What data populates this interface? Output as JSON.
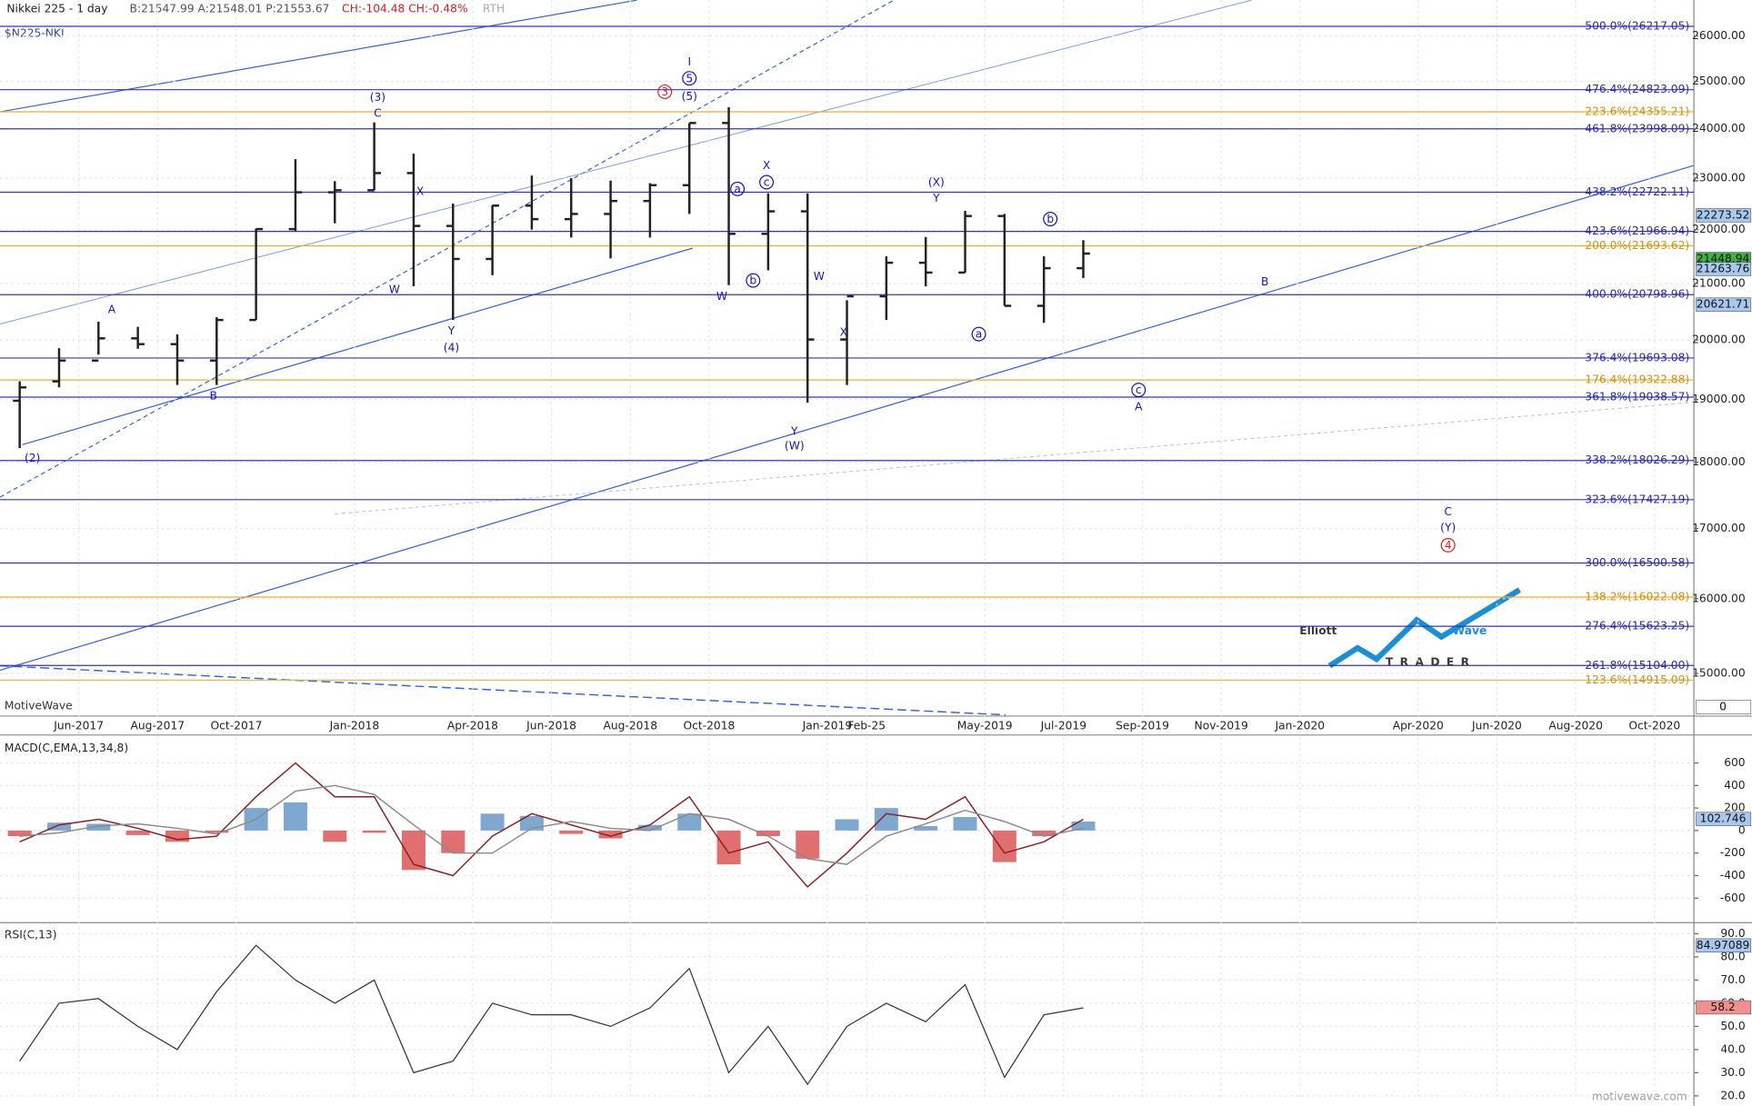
{
  "header": {
    "title": "Nikkei 225 - 1 day",
    "quote": "B:21547.99 A:21548.01 P:21553.67",
    "change": "CH:-104.48 CH:-0.48%",
    "session": "RTH",
    "symbol": "$N225-NKI",
    "brand": "MotiveWave",
    "site": "motivewave.com"
  },
  "logo": {
    "word1": "Elliott",
    "word2": "Wave",
    "word3": "TRADER"
  },
  "chart_data": [
    {
      "type": "ohlc",
      "log_scale": true,
      "grid": true,
      "x": [
        "2017-04",
        "2017-05",
        "2017-06",
        "2017-07",
        "2017-08",
        "2017-09",
        "2017-10",
        "2017-11",
        "2017-12",
        "2018-01",
        "2018-02",
        "2018-03",
        "2018-04",
        "2018-05",
        "2018-06",
        "2018-07",
        "2018-08",
        "2018-09",
        "2018-10",
        "2018-11",
        "2018-12",
        "2019-01",
        "2019-02",
        "2019-03",
        "2019-04",
        "2019-05",
        "2019-06",
        "2019-07"
      ],
      "open": [
        18980,
        19300,
        19650,
        20030,
        19930,
        19650,
        20350,
        22010,
        22720,
        22760,
        23100,
        22070,
        21450,
        22460,
        22200,
        22300,
        22550,
        22860,
        24120,
        21920,
        22350,
        20010,
        20770,
        21380,
        21200,
        22260,
        20600,
        21280
      ],
      "high": [
        19300,
        19860,
        20320,
        20230,
        20100,
        20400,
        22020,
        23380,
        22940,
        24130,
        23490,
        22500,
        22470,
        23050,
        23000,
        22950,
        22900,
        24120,
        24450,
        22700,
        22700,
        20700,
        21500,
        21860,
        22360,
        22300,
        21500,
        21800
      ],
      "low": [
        18220,
        19200,
        19750,
        19850,
        19240,
        19240,
        20350,
        21970,
        22120,
        22760,
        20950,
        20350,
        21150,
        22000,
        21850,
        21460,
        21850,
        22300,
        20970,
        21240,
        18950,
        19240,
        20350,
        20950,
        21200,
        20600,
        20300,
        21100
      ],
      "close": [
        19200,
        19650,
        20030,
        19930,
        19650,
        20350,
        22010,
        22720,
        22760,
        23100,
        22070,
        21450,
        22460,
        22200,
        22300,
        22550,
        22860,
        24120,
        21920,
        22350,
        20010,
        20770,
        21380,
        21200,
        22260,
        20600,
        21280,
        21550
      ],
      "color": "#222222",
      "xlim": [
        "2017-04",
        "2020-11"
      ],
      "xticks": [
        {
          "value": "2017-06",
          "label": "Jun-2017"
        },
        {
          "value": "2017-08",
          "label": "Aug-2017"
        },
        {
          "value": "2017-10",
          "label": "Oct-2017"
        },
        {
          "value": "2018-01",
          "label": "Jan-2018"
        },
        {
          "value": "2018-04",
          "label": "Apr-2018"
        },
        {
          "value": "2018-06",
          "label": "Jun-2018"
        },
        {
          "value": "2018-08",
          "label": "Aug-2018"
        },
        {
          "value": "2018-10",
          "label": "Oct-2018"
        },
        {
          "value": "2019-01",
          "label": "Jan-2019"
        },
        {
          "value": "2019-02",
          "label": "Feb-25"
        },
        {
          "value": "2019-05",
          "label": "May-2019"
        },
        {
          "value": "2019-07",
          "label": "Jul-2019"
        },
        {
          "value": "2019-09",
          "label": "Sep-2019"
        },
        {
          "value": "2019-11",
          "label": "Nov-2019"
        },
        {
          "value": "2020-01",
          "label": "Jan-2020"
        },
        {
          "value": "2020-04",
          "label": "Apr-2020"
        },
        {
          "value": "2020-06",
          "label": "Jun-2020"
        },
        {
          "value": "2020-08",
          "label": "Aug-2020"
        },
        {
          "value": "2020-10",
          "label": "Oct-2020"
        }
      ],
      "ylim": [
        14459,
        26817
      ],
      "yticks": [
        {
          "value": 15000,
          "label": "15000.00"
        },
        {
          "value": 16000,
          "label": "16000.00"
        },
        {
          "value": 17000,
          "label": "17000.00"
        },
        {
          "value": 18000,
          "label": "18000.00"
        },
        {
          "value": 19000,
          "label": "19000.00"
        },
        {
          "value": 20000,
          "label": "20000.00"
        },
        {
          "value": 21000,
          "label": "21000.00"
        },
        {
          "value": 22000,
          "label": "22000.00"
        },
        {
          "value": 23000,
          "label": "23000.00"
        },
        {
          "value": 24000,
          "label": "24000.00"
        },
        {
          "value": 25000,
          "label": "25000.00"
        },
        {
          "value": 26000,
          "label": "26000.00"
        }
      ],
      "levels": [
        {
          "label": "500.0%(26217.05)",
          "value": 26217.05,
          "color": "#3333cc"
        },
        {
          "label": "476.4%(24823.09)",
          "value": 24823.09,
          "color": "#3333cc"
        },
        {
          "label": "223.6%(24355.21)",
          "value": 24355.21,
          "color": "#e8b030"
        },
        {
          "label": "461.8%(23998.09)",
          "value": 23998.09,
          "color": "#3333cc"
        },
        {
          "label": "438.2%(22722.11)",
          "value": 22722.11,
          "color": "#3333cc"
        },
        {
          "label": "423.6%(21966.94)",
          "value": 21966.94,
          "color": "#3333cc"
        },
        {
          "label": "200.0%(21693.62)",
          "value": 21693.62,
          "color": "#e8b030"
        },
        {
          "label": "400.0%(20798.96)",
          "value": 20798.96,
          "color": "#3333cc"
        },
        {
          "label": "376.4%(19693.08)",
          "value": 19693.08,
          "color": "#3333cc"
        },
        {
          "label": "176.4%(19322.88)",
          "value": 19322.88,
          "color": "#e8b030"
        },
        {
          "label": "361.8%(19038.57)",
          "value": 19038.57,
          "color": "#3333cc"
        },
        {
          "label": "338.2%(18026.29)",
          "value": 18026.29,
          "color": "#3333cc"
        },
        {
          "label": "323.6%(17427.19)",
          "value": 17427.19,
          "color": "#3333cc"
        },
        {
          "label": "300.0%(16500.58)",
          "value": 16500.58,
          "color": "#3333cc"
        },
        {
          "label": "138.2%(16022.08)",
          "value": 16022.08,
          "color": "#e8b030"
        },
        {
          "label": "276.4%(15623.25)",
          "value": 15623.25,
          "color": "#3333cc"
        },
        {
          "label": "261.8%(15104.00)",
          "value": 15104.0,
          "color": "#3333cc"
        },
        {
          "label": "123.6%(14915.09)",
          "value": 14915.09,
          "color": "#e8b030"
        }
      ],
      "tags": [
        {
          "value": 22273.52,
          "color": "#a8c8f0"
        },
        {
          "value": 21448.94,
          "color": "#40b040"
        },
        {
          "value": 21263.76,
          "color": "#a8c8f0"
        },
        {
          "value": 20621.71,
          "color": "#a8c8f0"
        },
        {
          "value": 0,
          "color": "#ffffff"
        }
      ],
      "annotations": [
        "(2)",
        "A",
        "B",
        "(3)",
        "C",
        "X",
        "W",
        "Y",
        "(4)",
        "I",
        "5",
        "3",
        "(5)",
        "a",
        "X",
        "c",
        "b",
        "W",
        "Y",
        "(W)",
        "W",
        "X",
        "(X)",
        "Y",
        "a",
        "b",
        "B",
        "c",
        "A",
        "C",
        "(Y)",
        "4"
      ]
    },
    {
      "type": "macd",
      "title": "MACD(C,EMA,13,34,8)",
      "x": [
        "2017-04",
        "2017-05",
        "2017-06",
        "2017-07",
        "2017-08",
        "2017-09",
        "2017-10",
        "2017-11",
        "2017-12",
        "2018-01",
        "2018-02",
        "2018-03",
        "2018-04",
        "2018-05",
        "2018-06",
        "2018-07",
        "2018-08",
        "2018-09",
        "2018-10",
        "2018-11",
        "2018-12",
        "2019-01",
        "2019-02",
        "2019-03",
        "2019-04",
        "2019-05",
        "2019-06",
        "2019-07"
      ],
      "series": [
        {
          "name": "MACD",
          "color": "#8b2020",
          "values": [
            -100,
            50,
            100,
            20,
            -80,
            -50,
            300,
            600,
            300,
            300,
            -300,
            -400,
            -50,
            150,
            50,
            -50,
            50,
            300,
            -200,
            -100,
            -500,
            -200,
            150,
            100,
            300,
            -200,
            -100,
            100
          ]
        },
        {
          "name": "Signal",
          "color": "#8a8a8a",
          "values": [
            -50,
            -20,
            40,
            60,
            20,
            -30,
            100,
            350,
            400,
            320,
            50,
            -200,
            -200,
            20,
            80,
            20,
            0,
            150,
            100,
            -50,
            -250,
            -300,
            -50,
            60,
            180,
            80,
            -50,
            20
          ]
        },
        {
          "name": "Histogram",
          "color": "#7fa8d0",
          "negative_color": "#e07070",
          "values": [
            -50,
            70,
            60,
            -40,
            -100,
            -20,
            200,
            250,
            -100,
            -20,
            -350,
            -200,
            150,
            130,
            -30,
            -70,
            50,
            150,
            -300,
            -50,
            -250,
            100,
            200,
            40,
            120,
            -280,
            -50,
            80
          ]
        }
      ],
      "ylim": [
        -808,
        828
      ],
      "yticks": [
        -600,
        -400,
        -200,
        0,
        200,
        400,
        600
      ],
      "tags": [
        {
          "value": 102.746,
          "color": "#a8c8f0"
        }
      ]
    },
    {
      "type": "line",
      "title": "RSI(C,13)",
      "x": [
        "2017-04",
        "2017-05",
        "2017-06",
        "2017-07",
        "2017-08",
        "2017-09",
        "2017-10",
        "2017-11",
        "2017-12",
        "2018-01",
        "2018-02",
        "2018-03",
        "2018-04",
        "2018-05",
        "2018-06",
        "2018-07",
        "2018-08",
        "2018-09",
        "2018-10",
        "2018-11",
        "2018-12",
        "2019-01",
        "2019-02",
        "2019-03",
        "2019-04",
        "2019-05",
        "2019-06",
        "2019-07"
      ],
      "values": [
        35,
        60,
        62,
        50,
        40,
        65,
        85,
        70,
        60,
        70,
        30,
        35,
        60,
        55,
        55,
        50,
        58,
        75,
        30,
        50,
        25,
        50,
        60,
        52,
        68,
        28,
        55,
        58
      ],
      "color": "#333333",
      "ylim": [
        18.1,
        94.3
      ],
      "yticks": [
        {
          "value": 20,
          "label": "20.0"
        },
        {
          "value": 30,
          "label": "30.0"
        },
        {
          "value": 40,
          "label": "40.0"
        },
        {
          "value": 50,
          "label": "50.0"
        },
        {
          "value": 60,
          "label": "60.0"
        },
        {
          "value": 70,
          "label": "70.0"
        },
        {
          "value": 80,
          "label": "80.0"
        },
        {
          "value": 90,
          "label": "90.0"
        }
      ],
      "tags": [
        {
          "value": 84.97089,
          "color": "#a8c8f0"
        },
        {
          "value": 58.2,
          "color": "#f09090"
        }
      ]
    }
  ]
}
